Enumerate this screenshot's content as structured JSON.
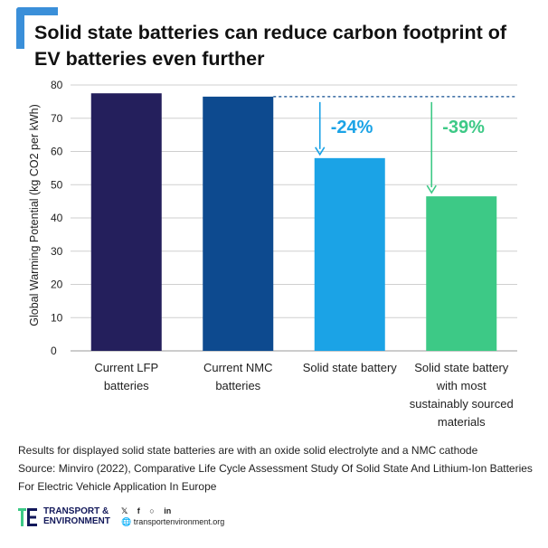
{
  "header": {
    "title": "Solid state batteries can reduce carbon footprint of EV batteries even further"
  },
  "chart_data": {
    "type": "bar",
    "ylabel": "Global Warming Potential (kg CO2 per kWh)",
    "ylim": [
      0,
      80
    ],
    "yticks": [
      0,
      10,
      20,
      30,
      40,
      50,
      60,
      70,
      80
    ],
    "categories": [
      [
        "Current LFP",
        "batteries"
      ],
      [
        "Current NMC",
        "batteries"
      ],
      [
        "Solid state battery"
      ],
      [
        "Solid state battery",
        "with most",
        "sustainably sourced",
        "materials"
      ]
    ],
    "values": [
      77.5,
      76.5,
      58,
      46.5
    ],
    "bar_colors": [
      "#241f5c",
      "#0d4a8f",
      "#1ba3e6",
      "#3dc986"
    ],
    "reference_line": {
      "value": 76.5,
      "color": "#0d4a8f",
      "style": "dashed"
    },
    "annotations": [
      {
        "bar_index": 2,
        "text": "-24%",
        "color": "#1ba3e6"
      },
      {
        "bar_index": 3,
        "text": "-39%",
        "color": "#3dc986"
      }
    ],
    "grid": "horizontal"
  },
  "notes": {
    "line1": "Results for displayed solid state batteries are with an oxide solid electrolyte and a NMC cathode",
    "line2": "Source: Minviro (2022), Comparative Life Cycle Assessment Study Of Solid State And Lithium-Ion Batteries For Electric Vehicle Application In Europe"
  },
  "footer": {
    "logo_line1": "TRANSPORT &",
    "logo_line2": "ENVIRONMENT",
    "icons": [
      "twitter-icon",
      "facebook-icon",
      "instagram-icon",
      "linkedin-icon"
    ],
    "website": "transportenvironment.org"
  },
  "colors": {
    "accent": "#3a8fd9",
    "brand_navy": "#12185a",
    "brand_green": "#3dc986"
  }
}
